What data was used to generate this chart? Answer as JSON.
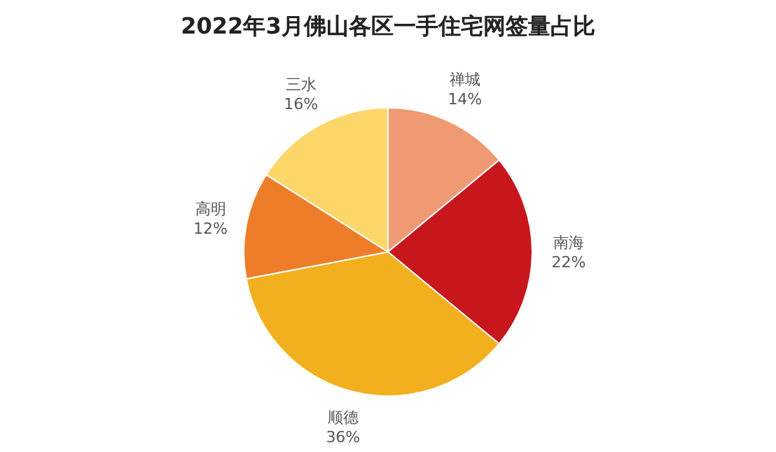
{
  "chart_data": {
    "type": "pie",
    "title": "2022年3月佛山各区一手住宅网签量占比",
    "categories": [
      "禅城",
      "南海",
      "顺德",
      "高明",
      "三水"
    ],
    "values": [
      14,
      22,
      36,
      12,
      16
    ],
    "value_labels": [
      "14%",
      "22%",
      "36%",
      "12%",
      "16%"
    ],
    "colors": [
      "#ef9a72",
      "#c8161d",
      "#f2b01e",
      "#ee7d2a",
      "#fdd66a"
    ]
  }
}
